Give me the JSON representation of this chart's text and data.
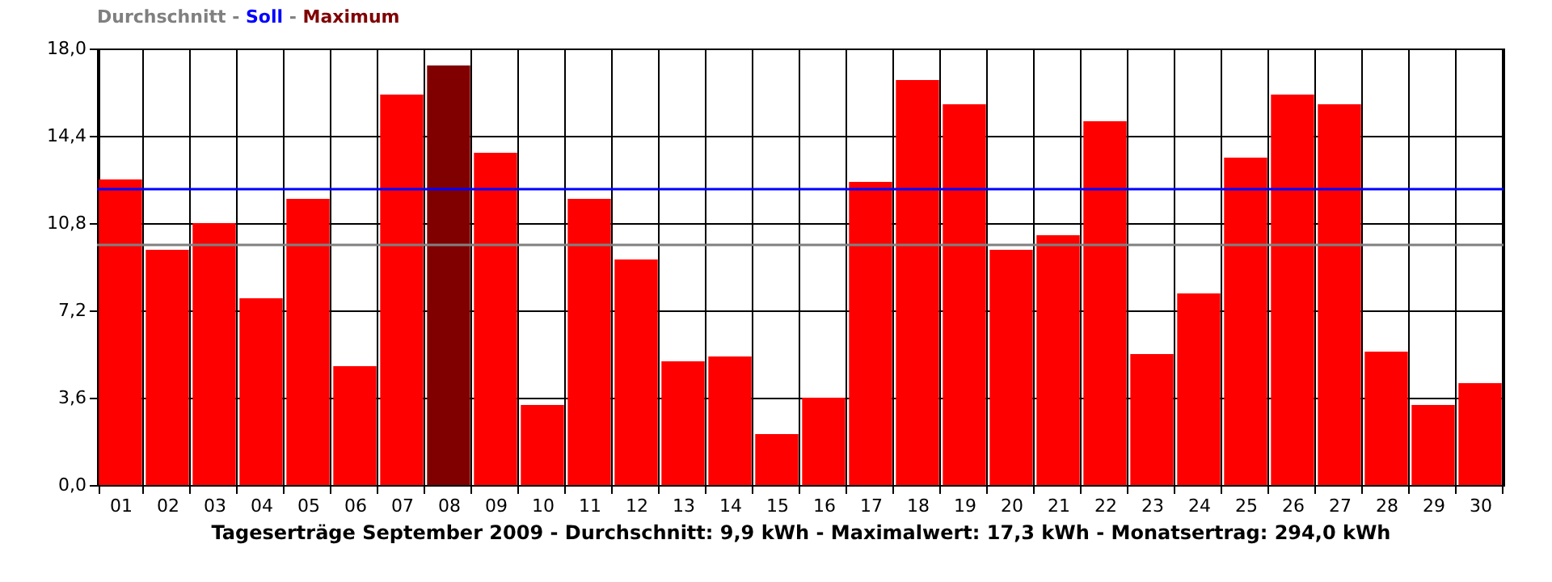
{
  "chart_data": {
    "type": "bar",
    "xlabel": "Tageserträge September 2009 - Durchschnitt: 9,9 kWh - Maximalwert: 17,3 kWh - Monatsertrag: 294,0 kWh",
    "categories": [
      "01",
      "02",
      "03",
      "04",
      "05",
      "06",
      "07",
      "08",
      "09",
      "10",
      "11",
      "12",
      "13",
      "14",
      "15",
      "16",
      "17",
      "18",
      "19",
      "20",
      "21",
      "22",
      "23",
      "24",
      "25",
      "26",
      "27",
      "28",
      "29",
      "30"
    ],
    "values": [
      12.6,
      9.7,
      10.8,
      7.7,
      11.8,
      4.9,
      16.1,
      17.3,
      13.7,
      3.3,
      11.8,
      9.3,
      5.1,
      5.3,
      2.1,
      3.6,
      12.5,
      16.7,
      15.7,
      9.7,
      10.3,
      15.0,
      5.4,
      7.9,
      13.5,
      16.1,
      15.7,
      5.5,
      3.3,
      4.2
    ],
    "colors": [
      "#ff0000",
      "#ff0000",
      "#ff0000",
      "#ff0000",
      "#ff0000",
      "#ff0000",
      "#ff0000",
      "#800000",
      "#ff0000",
      "#ff0000",
      "#ff0000",
      "#ff0000",
      "#ff0000",
      "#ff0000",
      "#ff0000",
      "#ff0000",
      "#ff0000",
      "#ff0000",
      "#ff0000",
      "#ff0000",
      "#ff0000",
      "#ff0000",
      "#ff0000",
      "#ff0000",
      "#ff0000",
      "#ff0000",
      "#ff0000",
      "#ff0000",
      "#ff0000",
      "#ff0000"
    ],
    "ylim": [
      0,
      18
    ],
    "yticks": [
      {
        "value": 0,
        "label": "0,0"
      },
      {
        "value": 3.6,
        "label": "3,6"
      },
      {
        "value": 7.2,
        "label": "7,2"
      },
      {
        "value": 10.8,
        "label": "10,8"
      },
      {
        "value": 14.4,
        "label": "14,4"
      },
      {
        "value": 18,
        "label": "18,0"
      }
    ],
    "grid": true,
    "ref_lines": [
      {
        "axis": "y",
        "value": 9.9,
        "color": "#808080"
      },
      {
        "axis": "y",
        "value": 12.2,
        "color": "#0000ff"
      }
    ],
    "annotations": [
      "Durchschnitt - Soll - Maximum"
    ]
  }
}
